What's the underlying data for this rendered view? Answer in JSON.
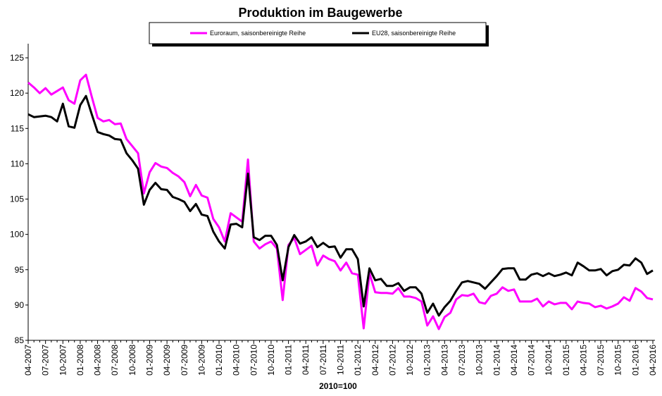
{
  "chart_data": {
    "type": "line",
    "title": "Produktion im Baugewerbe",
    "xlabel": "2010=100",
    "legend": "top",
    "grid": false,
    "categories": [
      "04-2007",
      null,
      null,
      "07-2007",
      null,
      null,
      "10-2007",
      null,
      null,
      "01-2008",
      null,
      null,
      "04-2008",
      null,
      null,
      "07-2008",
      null,
      null,
      "10-2008",
      null,
      null,
      "01-2009",
      null,
      null,
      "04-2009",
      null,
      null,
      "07-2009",
      null,
      null,
      "10-2009",
      null,
      null,
      "01-2010",
      null,
      null,
      "04-2010",
      null,
      null,
      "07-2010",
      null,
      null,
      "10-2010",
      null,
      null,
      "01-2011",
      null,
      null,
      "04-2011",
      null,
      null,
      "07-2011",
      null,
      null,
      "10-2011",
      null,
      null,
      "01-2012",
      null,
      null,
      "04-2012",
      null,
      null,
      "07-2012",
      null,
      null,
      "10-2012",
      null,
      null,
      "01-2013",
      null,
      null,
      "04-2013",
      null,
      null,
      "07-2013",
      null,
      null,
      "10-2013",
      null,
      null,
      "01-2014",
      null,
      null,
      "04-2014",
      null,
      null,
      "07-2014",
      null,
      null,
      "10-2014",
      null,
      null,
      "01-2015",
      null,
      null,
      "04-2015",
      null,
      null,
      "07-2015",
      null,
      null,
      "10-2015",
      null,
      null,
      "01-2016",
      null,
      null,
      "04-2016"
    ],
    "ylim": [
      85,
      127
    ],
    "yticks": [
      85,
      90,
      95,
      100,
      105,
      110,
      115,
      120,
      125
    ],
    "series": [
      {
        "name": "Euroraum, saisonbereinigte Reihe",
        "color": "#ff00ff",
        "values": [
          121.5,
          120.8,
          120.0,
          120.7,
          119.8,
          120.3,
          120.8,
          119.0,
          118.5,
          121.8,
          122.6,
          119.5,
          116.5,
          116.0,
          116.2,
          115.6,
          115.7,
          113.5,
          112.5,
          111.5,
          105.8,
          108.8,
          110.1,
          109.6,
          109.4,
          108.7,
          108.2,
          107.4,
          105.4,
          107.0,
          105.5,
          105.2,
          102.2,
          101.0,
          99.0,
          103.0,
          102.4,
          101.8,
          110.6,
          99.0,
          98.0,
          98.6,
          99.0,
          98.0,
          90.7,
          98.5,
          99.5,
          97.2,
          97.8,
          98.4,
          95.6,
          97.0,
          96.5,
          96.2,
          94.9,
          96.0,
          94.5,
          94.3,
          86.7,
          94.5,
          91.8,
          91.7,
          91.7,
          91.6,
          92.4,
          91.2,
          91.2,
          91.0,
          90.5,
          87.1,
          88.4,
          86.6,
          88.3,
          88.9,
          90.8,
          91.4,
          91.3,
          91.6,
          90.4,
          90.2,
          91.3,
          91.6,
          92.5,
          92.0,
          92.2,
          90.5,
          90.5,
          90.5,
          90.9,
          89.8,
          90.5,
          90.1,
          90.3,
          90.3,
          89.4,
          90.5,
          90.3,
          90.2,
          89.7,
          89.9,
          89.5,
          89.8,
          90.2,
          91.1,
          90.6,
          92.4,
          91.9,
          91.0,
          90.8
        ]
      },
      {
        "name": "EU28, saisonbereinigte Reihe",
        "color": "#000000",
        "values": [
          117.0,
          116.6,
          116.7,
          116.8,
          116.6,
          116.0,
          118.5,
          115.3,
          115.1,
          118.3,
          119.6,
          117.0,
          114.5,
          114.2,
          114.0,
          113.5,
          113.4,
          111.5,
          110.5,
          109.3,
          104.2,
          106.3,
          107.3,
          106.4,
          106.3,
          105.3,
          105.0,
          104.6,
          103.3,
          104.3,
          102.8,
          102.6,
          100.4,
          99.0,
          98.0,
          101.4,
          101.5,
          101.0,
          108.6,
          99.6,
          99.2,
          99.8,
          99.8,
          98.5,
          93.5,
          98.2,
          99.9,
          98.7,
          99.0,
          99.6,
          98.2,
          98.8,
          98.2,
          98.3,
          96.7,
          97.9,
          97.9,
          96.5,
          89.8,
          95.2,
          93.5,
          93.7,
          92.7,
          92.7,
          93.1,
          92.0,
          92.5,
          92.5,
          91.6,
          88.9,
          90.2,
          88.5,
          89.7,
          90.6,
          92.0,
          93.2,
          93.4,
          93.2,
          93.0,
          92.3,
          93.2,
          94.1,
          95.1,
          95.2,
          95.2,
          93.6,
          93.6,
          94.3,
          94.5,
          94.1,
          94.5,
          94.1,
          94.3,
          94.6,
          94.2,
          96.0,
          95.5,
          94.9,
          94.9,
          95.1,
          94.2,
          94.8,
          95.0,
          95.7,
          95.6,
          96.6,
          96.0,
          94.4,
          94.9
        ]
      }
    ]
  }
}
